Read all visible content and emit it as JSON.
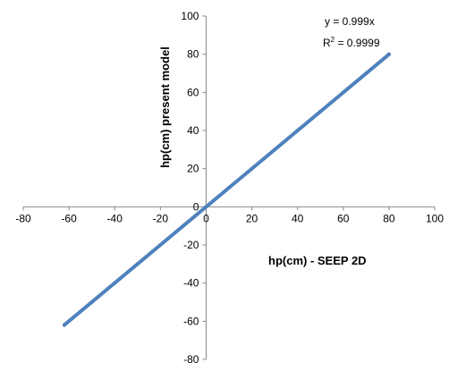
{
  "chart_data": {
    "type": "scatter",
    "title": "",
    "xlabel": "hp(cm)  - SEEP 2D",
    "ylabel": "hp(cm)   present model",
    "xlim": [
      -80,
      100
    ],
    "ylim": [
      -80,
      100
    ],
    "x_ticks": [
      "-80",
      "-60",
      "-40",
      "-20",
      "0",
      "20",
      "40",
      "60",
      "80",
      "100"
    ],
    "y_ticks": [
      "100",
      "80",
      "60",
      "40",
      "20",
      "0",
      "-20",
      "-40",
      "-60",
      "-80"
    ],
    "grid": false,
    "legend": "none",
    "series": [
      {
        "marker_color": "#3a6ea5",
        "x": [
          -62,
          -50,
          -40,
          -30,
          -20,
          -10,
          0,
          10,
          20,
          30,
          40,
          50,
          60,
          70,
          80
        ],
        "y": [
          -62,
          -50,
          -40,
          -30,
          -20,
          -10,
          0,
          10,
          20,
          30,
          40,
          50,
          60,
          70,
          80
        ]
      }
    ],
    "trendline": {
      "equation": "y = 0.999x",
      "r_squared_prefix": "R",
      "r_squared_sup": "2",
      "r_squared_value": " = 0.9999",
      "slope": 0.999,
      "x_range": [
        -62,
        80
      ],
      "color": "#4f81bd"
    },
    "axis_color": "#888888"
  }
}
